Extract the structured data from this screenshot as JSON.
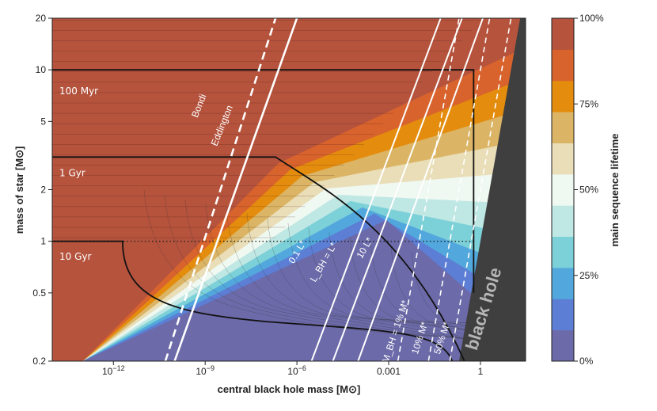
{
  "chart_data": {
    "type": "heatmap",
    "xlabel": "central black hole mass [M⊙]",
    "ylabel": "mass of star [M⊙]",
    "xscale": "log",
    "yscale": "log",
    "xlim": [
      1e-14,
      30
    ],
    "ylim": [
      0.2,
      20
    ],
    "x_ticks": [
      {
        "value": 1e-12,
        "base": "10",
        "exp": "−12"
      },
      {
        "value": 1e-09,
        "base": "10",
        "exp": "−9"
      },
      {
        "value": 1e-06,
        "base": "10",
        "exp": "−6"
      },
      {
        "value": 0.001,
        "label": "0.001"
      },
      {
        "value": 1,
        "label": "1"
      }
    ],
    "y_ticks": [
      {
        "value": 0.2,
        "label": "0.2"
      },
      {
        "value": 0.5,
        "label": "0.5"
      },
      {
        "value": 1,
        "label": "1"
      },
      {
        "value": 2,
        "label": "2"
      },
      {
        "value": 5,
        "label": "5"
      },
      {
        "value": 10,
        "label": "10"
      },
      {
        "value": 20,
        "label": "20"
      }
    ],
    "colorbar": {
      "label": "main sequence lifetime",
      "tick_labels": [
        "0%",
        "25%",
        "50%",
        "75%",
        "100%"
      ],
      "tick_values": [
        0,
        0.25,
        0.5,
        0.75,
        1.0
      ],
      "colors": [
        "#6c6aa9",
        "#5c7ed4",
        "#52a8dc",
        "#7cd0d8",
        "#bfe7e4",
        "#eff8f1",
        "#e9deb8",
        "#dbb565",
        "#e48c0d",
        "#d8632d",
        "#b5533d"
      ]
    },
    "lifetime_contours": [
      {
        "label": "100 Myr",
        "star_mass": 10,
        "x_left": 1e-14,
        "x_right": 0.6
      },
      {
        "label": "1 Gyr",
        "star_mass": 3.1,
        "x_left": 1e-14,
        "x_knee": 2e-07,
        "x_end": 0.6
      },
      {
        "label": "10 Gyr",
        "star_mass": 1,
        "x_left": 1e-14,
        "x_knee": 2e-12,
        "x_end": 0.6
      }
    ],
    "reference_line": {
      "star_mass": 1,
      "style": "dotted"
    },
    "accretion_lines": [
      {
        "label": "Bondi",
        "style": "solid",
        "points": [
          [
            1e-10,
            0.2
          ],
          [
            1e-06,
            20
          ]
        ]
      },
      {
        "label": "Eddington",
        "style": "dashed",
        "points": [
          [
            5e-11,
            0.2
          ],
          [
            2e-07,
            20
          ]
        ]
      }
    ],
    "luminosity_lines": [
      {
        "label": "0.1 L*",
        "points": [
          [
            3e-06,
            0.2
          ],
          [
            0.05,
            20
          ]
        ]
      },
      {
        "label": "L_BH = L*",
        "points": [
          [
            1.5e-05,
            0.2
          ],
          [
            0.25,
            20
          ]
        ]
      },
      {
        "label": "10 L*",
        "points": [
          [
            0.0001,
            0.2
          ],
          [
            1.2,
            20
          ]
        ]
      }
    ],
    "mass_ratio_lines": [
      {
        "label": "M_BH = 1% M*",
        "points": [
          [
            0.002,
            0.2
          ],
          [
            0.2,
            20
          ]
        ]
      },
      {
        "label": "10% M*",
        "points": [
          [
            0.02,
            0.2
          ],
          [
            2,
            20
          ]
        ]
      },
      {
        "label": "50% M*",
        "points": [
          [
            0.1,
            0.2
          ],
          [
            10,
            20
          ]
        ]
      }
    ],
    "black_hole_region": {
      "label": "black hole",
      "boundary": [
        [
          0.2,
          0.2
        ],
        [
          20,
          20
        ]
      ]
    }
  }
}
